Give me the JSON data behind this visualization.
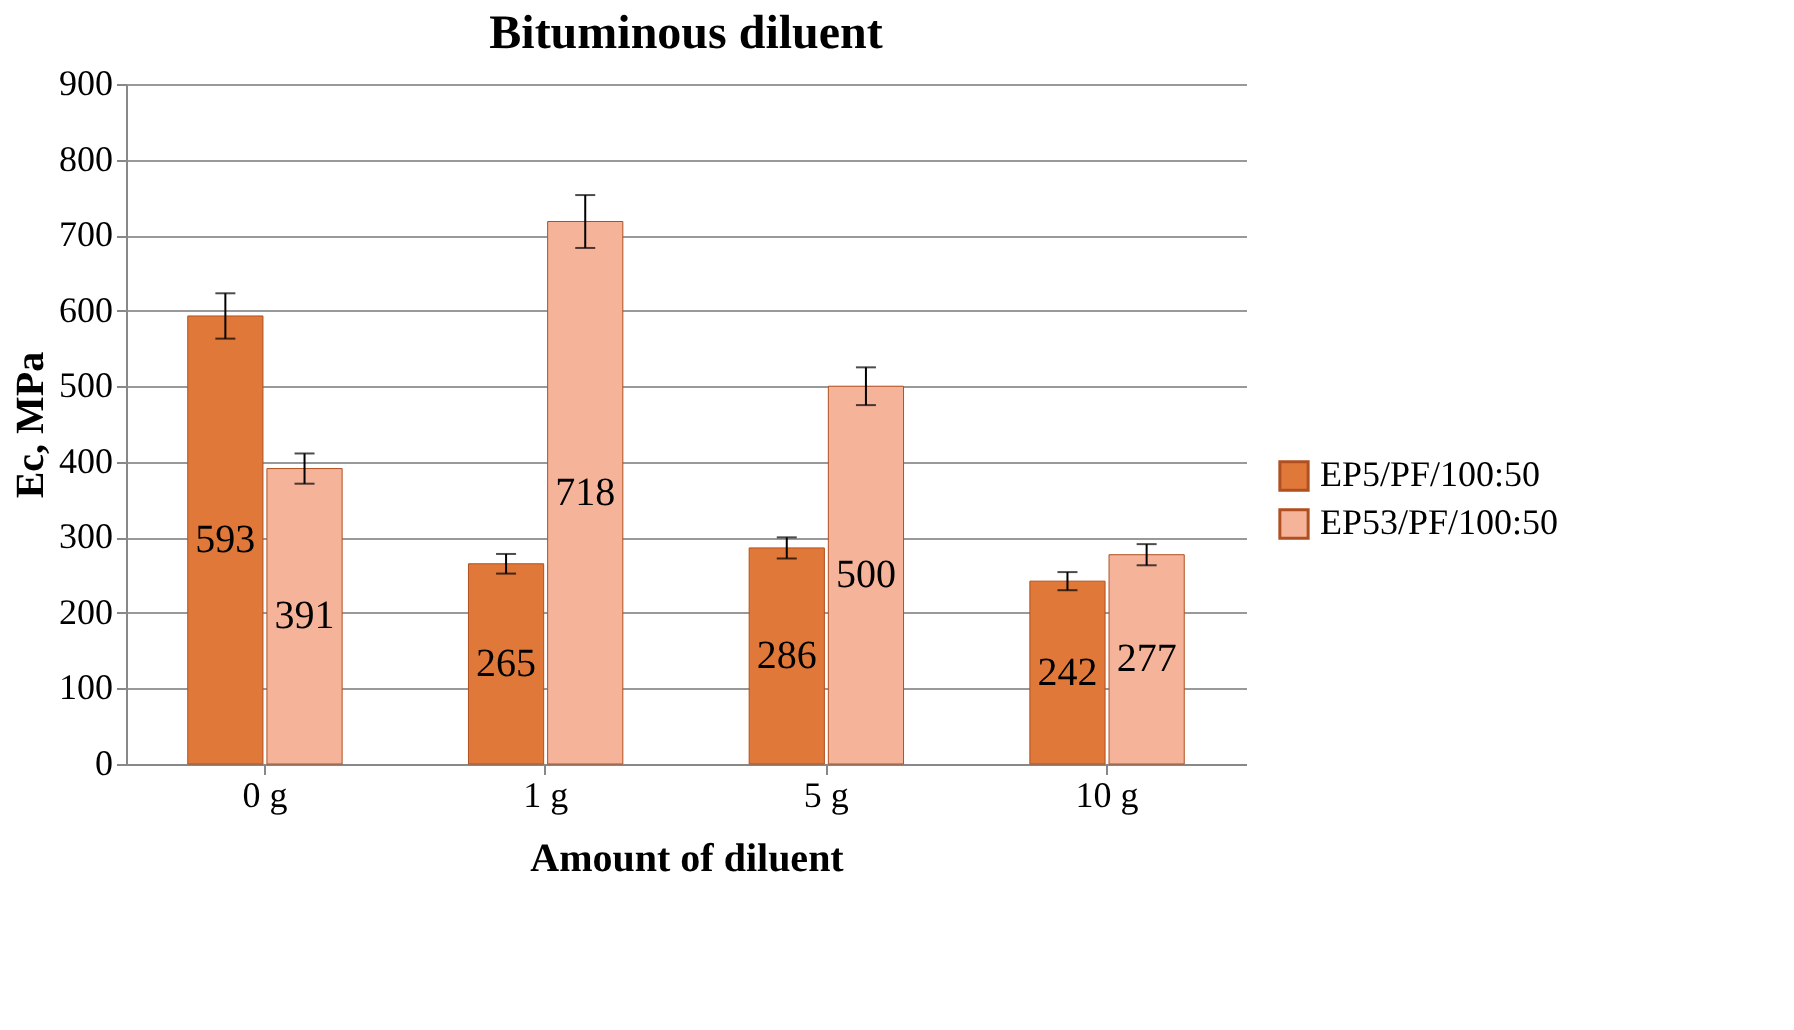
{
  "chart_data": {
    "type": "bar",
    "title": "Bituminous diluent",
    "xlabel": "Amount of diluent",
    "ylabel": "Ec, MPa",
    "categories": [
      "0 g",
      "1 g",
      "5 g",
      "10 g"
    ],
    "series": [
      {
        "name": "EP5/PF/100:50",
        "color": "#e0783a",
        "values": [
          593,
          265,
          286,
          242
        ],
        "errors": [
          30,
          13,
          14,
          12
        ]
      },
      {
        "name": "EP53/PF/100:50",
        "color": "#f5b49a",
        "values": [
          391,
          718,
          500,
          277
        ],
        "errors": [
          20,
          35,
          25,
          14
        ]
      }
    ],
    "ylim": [
      0,
      900
    ],
    "yticks": [
      0,
      100,
      200,
      300,
      400,
      500,
      600,
      700,
      800,
      900
    ],
    "grid": "y",
    "legend": "right",
    "data_labels": true
  }
}
